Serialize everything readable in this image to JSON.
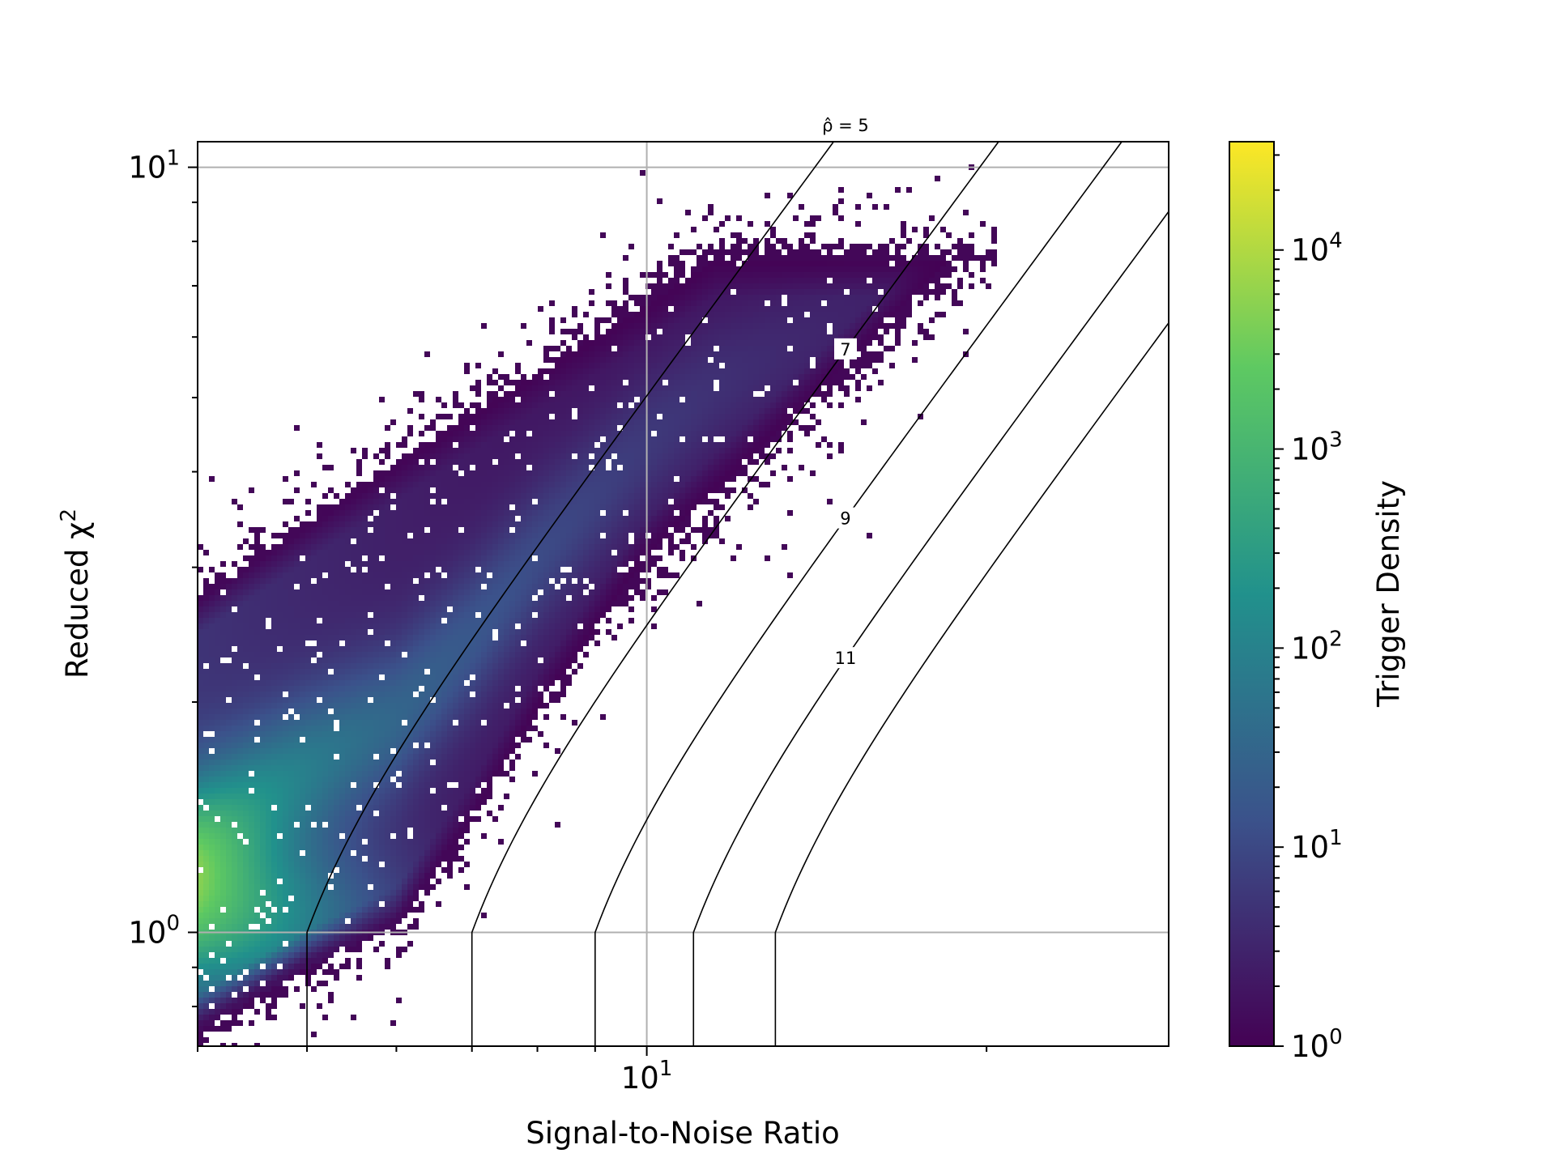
{
  "chart_data": {
    "type": "heatmap",
    "subtype": "hexbin",
    "title": "",
    "xlabel": "Signal-to-Noise Ratio",
    "ylabel_main": "Reduced χ",
    "ylabel_sup": "2",
    "colorbar_label": "Trigger Density",
    "colormap": "viridis",
    "colormap_stops": [
      "#440154",
      "#3b528b",
      "#21918c",
      "#5ec962",
      "#fde725"
    ],
    "xscale": "log",
    "yscale": "log",
    "xlim": [
      4.0,
      29.0
    ],
    "ylim": [
      0.71,
      10.8
    ],
    "clim": [
      1,
      35000
    ],
    "grid": true,
    "x_ticks": [
      {
        "value": 10,
        "base": "10",
        "exp": "1"
      }
    ],
    "y_ticks": [
      {
        "value": 1,
        "base": "10",
        "exp": "0"
      },
      {
        "value": 10,
        "base": "10",
        "exp": "1"
      }
    ],
    "colorbar_ticks": [
      {
        "value": 1,
        "base": "10",
        "exp": "0"
      },
      {
        "value": 10,
        "base": "10",
        "exp": "1"
      },
      {
        "value": 100,
        "base": "10",
        "exp": "2"
      },
      {
        "value": 1000,
        "base": "10",
        "exp": "3"
      },
      {
        "value": 10000,
        "base": "10",
        "exp": "4"
      }
    ],
    "contours": {
      "description": "re-weighted SNR contours: rho_hat = snr for chi2r <= 1, else snr / ((1 + chi2r^3)/2)^(1/6)",
      "levels": [
        5,
        7,
        9,
        11,
        13
      ],
      "labels": [
        {
          "level": 5,
          "text": "ρ̂ = 5",
          "x": 15.0,
          "boxed": true
        },
        {
          "level": 7,
          "text": "7",
          "x": 15.0
        },
        {
          "level": 9,
          "text": "9",
          "x": 15.0
        },
        {
          "level": 11,
          "text": "11",
          "x": 15.0
        }
      ]
    },
    "density_model": {
      "description": "approximate trigger density, peak near SNR 4, chi2r 1.05",
      "peak": {
        "snr": 4.05,
        "chi2r": 1.05,
        "density": 35000
      },
      "band_upper_edge": [
        [
          4.0,
          2.75
        ],
        [
          6.0,
          4.1
        ],
        [
          8.0,
          5.4
        ],
        [
          10.0,
          6.6
        ],
        [
          11.5,
          7.6
        ]
      ],
      "band_lower_edge": [
        [
          4.0,
          0.74
        ],
        [
          5.0,
          0.9
        ],
        [
          6.0,
          1.02
        ],
        [
          7.0,
          1.4
        ],
        [
          8.0,
          1.95
        ],
        [
          10.0,
          3.1
        ],
        [
          12.0,
          4.0
        ],
        [
          14.0,
          5.0
        ]
      ],
      "outer_scatter_extent_snr": 20.5
    }
  }
}
